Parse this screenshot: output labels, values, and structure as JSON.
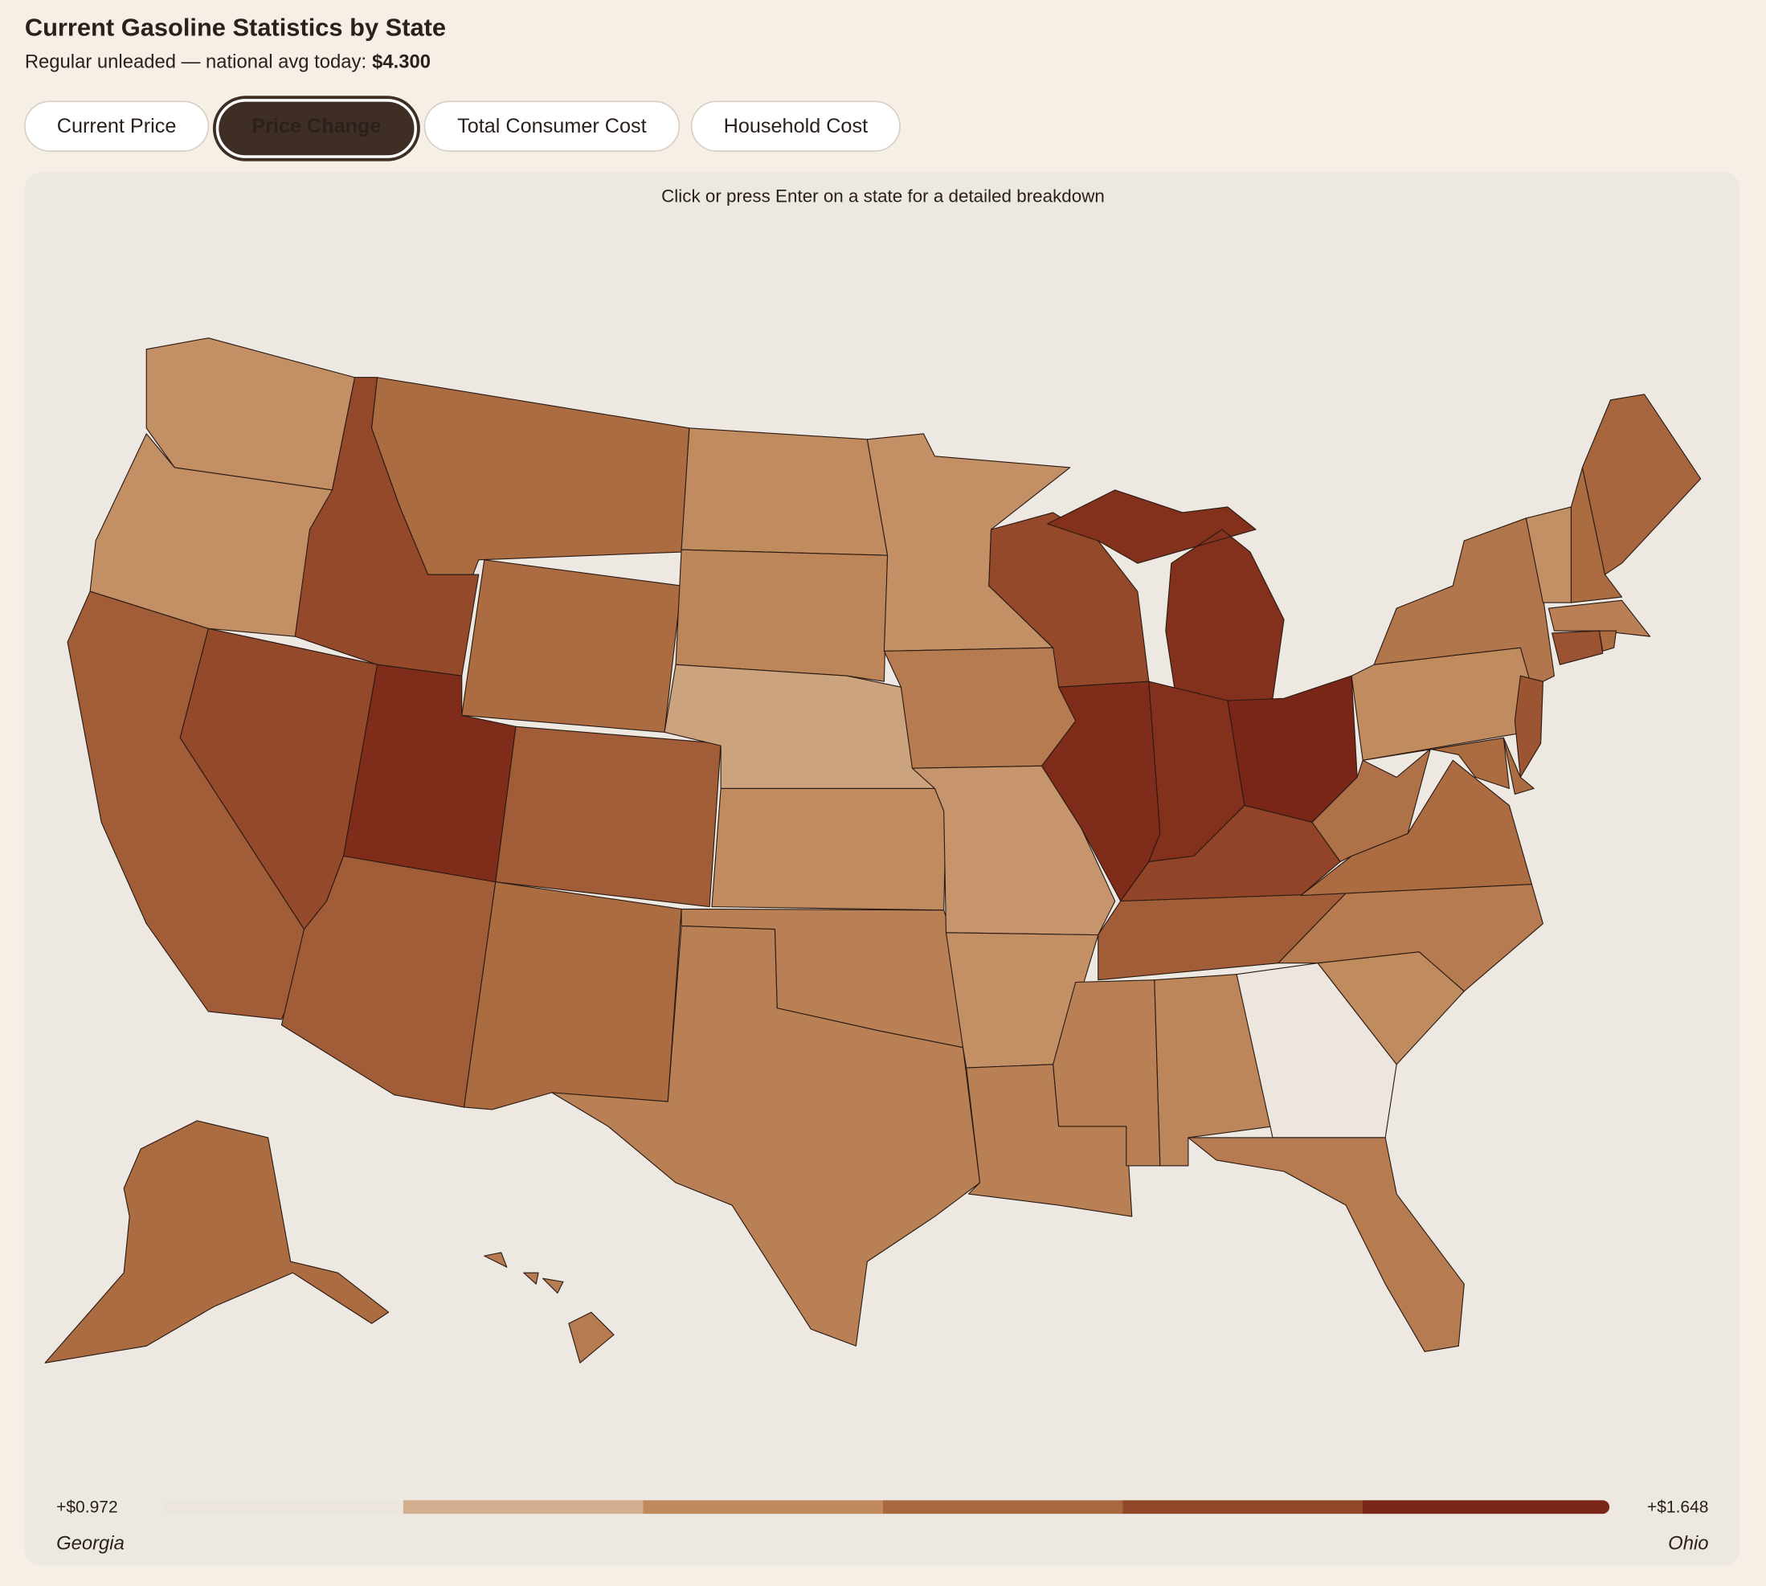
{
  "header": {
    "title": "Current Gasoline Statistics by State",
    "subtitle": "Regular unleaded — national avg today:",
    "national_avg": "$4.300"
  },
  "tabs": [
    {
      "label": "Current Price",
      "selected": false
    },
    {
      "label": "Price Change",
      "selected": true
    },
    {
      "label": "Total Consumer Cost",
      "selected": false
    },
    {
      "label": "Household Cost",
      "selected": false
    }
  ],
  "map": {
    "hint": "Click or press Enter on a state for a detailed breakdown"
  },
  "chart_data": {
    "type": "choropleth",
    "values": [
      1.22,
      1.22,
      1.42,
      1.5,
      1.5,
      1.36,
      1.36,
      1.62,
      1.42,
      1.42,
      1.36,
      1.24,
      1.26,
      1.15,
      1.24,
      1.28,
      1.28,
      1.22,
      1.3,
      1.2,
      1.22,
      1.28,
      1.5,
      1.62,
      1.6,
      1.6,
      1.648,
      1.52,
      1.42,
      1.28,
      1.26,
      0.972,
      1.3,
      1.24,
      1.3,
      1.36,
      1.34,
      1.24,
      1.32,
      1.36,
      1.36,
      1.45,
      1.28,
      1.46,
      1.36,
      1.22,
      1.36,
      1.38,
      1.36,
      1.3
    ],
    "colors": [
      "#ece6df",
      "#d2ae8e",
      "#c08a5e",
      "#a8673e",
      "#924628",
      "#7a2616"
    ],
    "min": {
      "value": 0.972,
      "label": "+$0.972",
      "state": "Georgia"
    },
    "max": {
      "value": 1.648,
      "label": "+$1.648",
      "state": "Ohio"
    }
  }
}
